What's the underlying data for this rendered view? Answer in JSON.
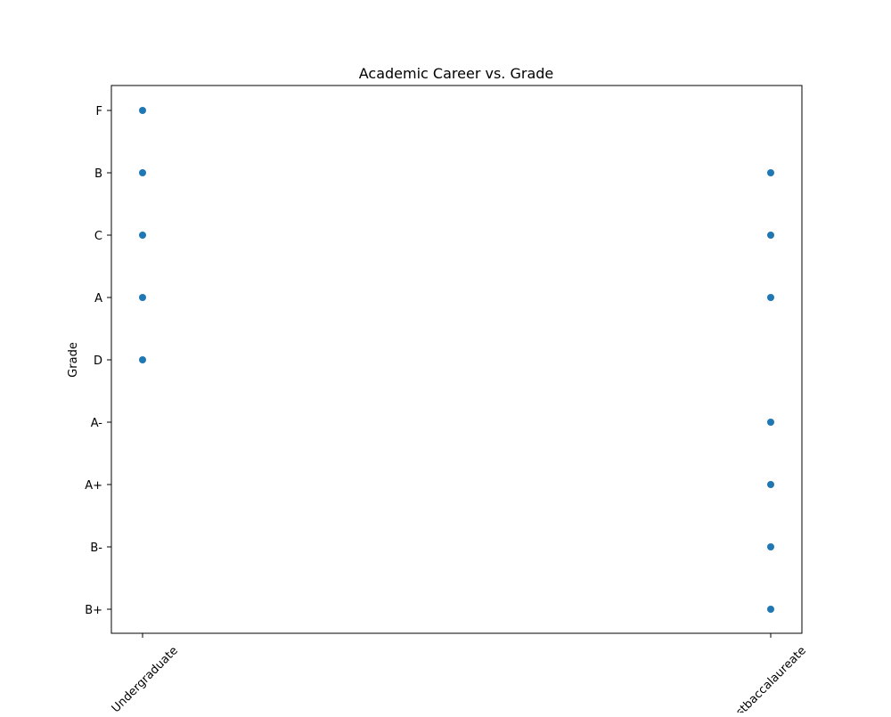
{
  "chart_data": {
    "type": "scatter",
    "title": "Academic Career vs. Grade",
    "xlabel": "",
    "ylabel": "Grade",
    "x_categories": [
      "Undergraduate",
      "Postbaccalaureate"
    ],
    "y_categories": [
      "B+",
      "B-",
      "A+",
      "A-",
      "D",
      "A",
      "C",
      "B",
      "F"
    ],
    "points": [
      {
        "x": "Undergraduate",
        "y": "F"
      },
      {
        "x": "Undergraduate",
        "y": "B"
      },
      {
        "x": "Undergraduate",
        "y": "C"
      },
      {
        "x": "Undergraduate",
        "y": "A"
      },
      {
        "x": "Undergraduate",
        "y": "D"
      },
      {
        "x": "Postbaccalaureate",
        "y": "B"
      },
      {
        "x": "Postbaccalaureate",
        "y": "C"
      },
      {
        "x": "Postbaccalaureate",
        "y": "A"
      },
      {
        "x": "Postbaccalaureate",
        "y": "A-"
      },
      {
        "x": "Postbaccalaureate",
        "y": "A+"
      },
      {
        "x": "Postbaccalaureate",
        "y": "B-"
      },
      {
        "x": "Postbaccalaureate",
        "y": "B+"
      }
    ],
    "grid": false,
    "point_color": "#1f77b4",
    "x_tick_rotation_deg": 45
  }
}
